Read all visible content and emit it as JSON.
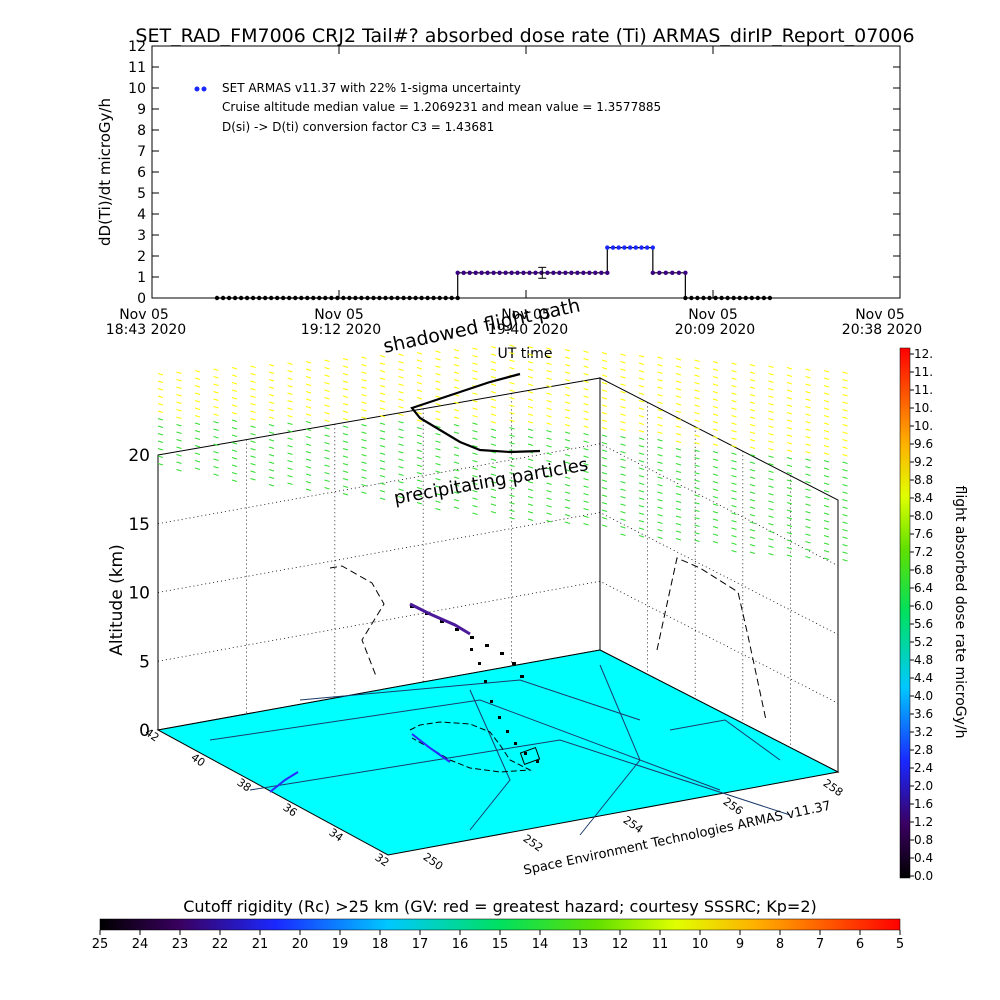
{
  "title": "SET_RAD_FM7006   CRJ2 Tail#? absorbed dose rate (Ti) ARMAS_dirIP_Report_07006",
  "top_chart": {
    "ylabel": "dD(Ti)/dt microGy/h",
    "xlabel": "UT time",
    "legend": {
      "series": "SET ARMAS v11.37 with 22% 1-sigma uncertainty",
      "line2": "Cruise altitude median value = 1.2069231 and mean value = 1.3577885",
      "line3": "D(si) -> D(ti) conversion factor C3 = 1.43681"
    },
    "x_ticks": [
      {
        "top": "Nov 05",
        "bottom": "18:43 2020"
      },
      {
        "top": "Nov 05",
        "bottom": "19:12 2020"
      },
      {
        "top": "Nov 05",
        "bottom": "19:40 2020"
      },
      {
        "top": "Nov 05",
        "bottom": "20:09 2020"
      },
      {
        "top": "Nov 05",
        "bottom": "20:38 2020"
      }
    ]
  },
  "chart_data": [
    {
      "type": "line",
      "ylabel": "dD(Ti)/dt microGy/h",
      "xlabel": "UT time",
      "xlim": [
        "18:43",
        "20:38"
      ],
      "ylim": [
        0,
        12
      ],
      "y_ticks": [
        0,
        1,
        2,
        3,
        4,
        5,
        6,
        7,
        8,
        9,
        10,
        11,
        12
      ],
      "series": [
        {
          "name": "SET ARMAS v11.37 with 22% 1-sigma uncertainty",
          "segments": [
            {
              "from": "18:53",
              "to": "19:30",
              "value": 0
            },
            {
              "from": "19:30",
              "to": "19:53",
              "value": 1.2
            },
            {
              "from": "19:53",
              "to": "20:00",
              "value": 2.4
            },
            {
              "from": "20:00",
              "to": "20:05",
              "value": 1.2
            },
            {
              "from": "20:05",
              "to": "20:18",
              "value": 0
            }
          ],
          "error_bar": {
            "time": "19:43",
            "value": 1.2,
            "low": 0.94,
            "high": 1.46
          }
        }
      ]
    },
    {
      "type": "scatter",
      "ylabel": "Altitude (km)",
      "z_ticks": [
        0,
        5,
        10,
        15,
        20
      ],
      "lat_ticks": [
        "42",
        "40",
        "38",
        "36",
        "34",
        "32"
      ],
      "lon_ticks": [
        "250",
        "252",
        "254",
        "256",
        "258"
      ]
    }
  ],
  "scene": {
    "shadow_label": "shadowed flight path",
    "precip_label": "precipitating particles",
    "credit": "Space Environment Technologies ARMAS v11.37",
    "colors": {
      "ground": "#00ffff",
      "precip_high": "#ffff00",
      "precip_low": "#33dd33"
    }
  },
  "right_colorbar": {
    "label": "flight absorbed dose rate microGy/h",
    "ticks": [
      "12.",
      "11.",
      "11.",
      "10.",
      "10.",
      "9.6",
      "9.2",
      "8.8",
      "8.4",
      "8.0",
      "7.6",
      "7.2",
      "6.8",
      "6.4",
      "6.0",
      "5.6",
      "5.2",
      "4.8",
      "4.4",
      "4.0",
      "3.6",
      "3.2",
      "2.8",
      "2.4",
      "2.0",
      "1.6",
      "1.2",
      "0.8",
      "0.4",
      "0.0"
    ]
  },
  "bottom_colorbar": {
    "label": "Cutoff rigidity (Rc) >25 km (GV: red = greatest hazard; courtesy SSSRC; Kp=2)",
    "ticks": [
      "25",
      "24",
      "23",
      "22",
      "21",
      "20",
      "19",
      "18",
      "17",
      "16",
      "15",
      "14",
      "13",
      "12",
      "11",
      "10",
      "9",
      "8",
      "7",
      "6",
      "5"
    ]
  }
}
